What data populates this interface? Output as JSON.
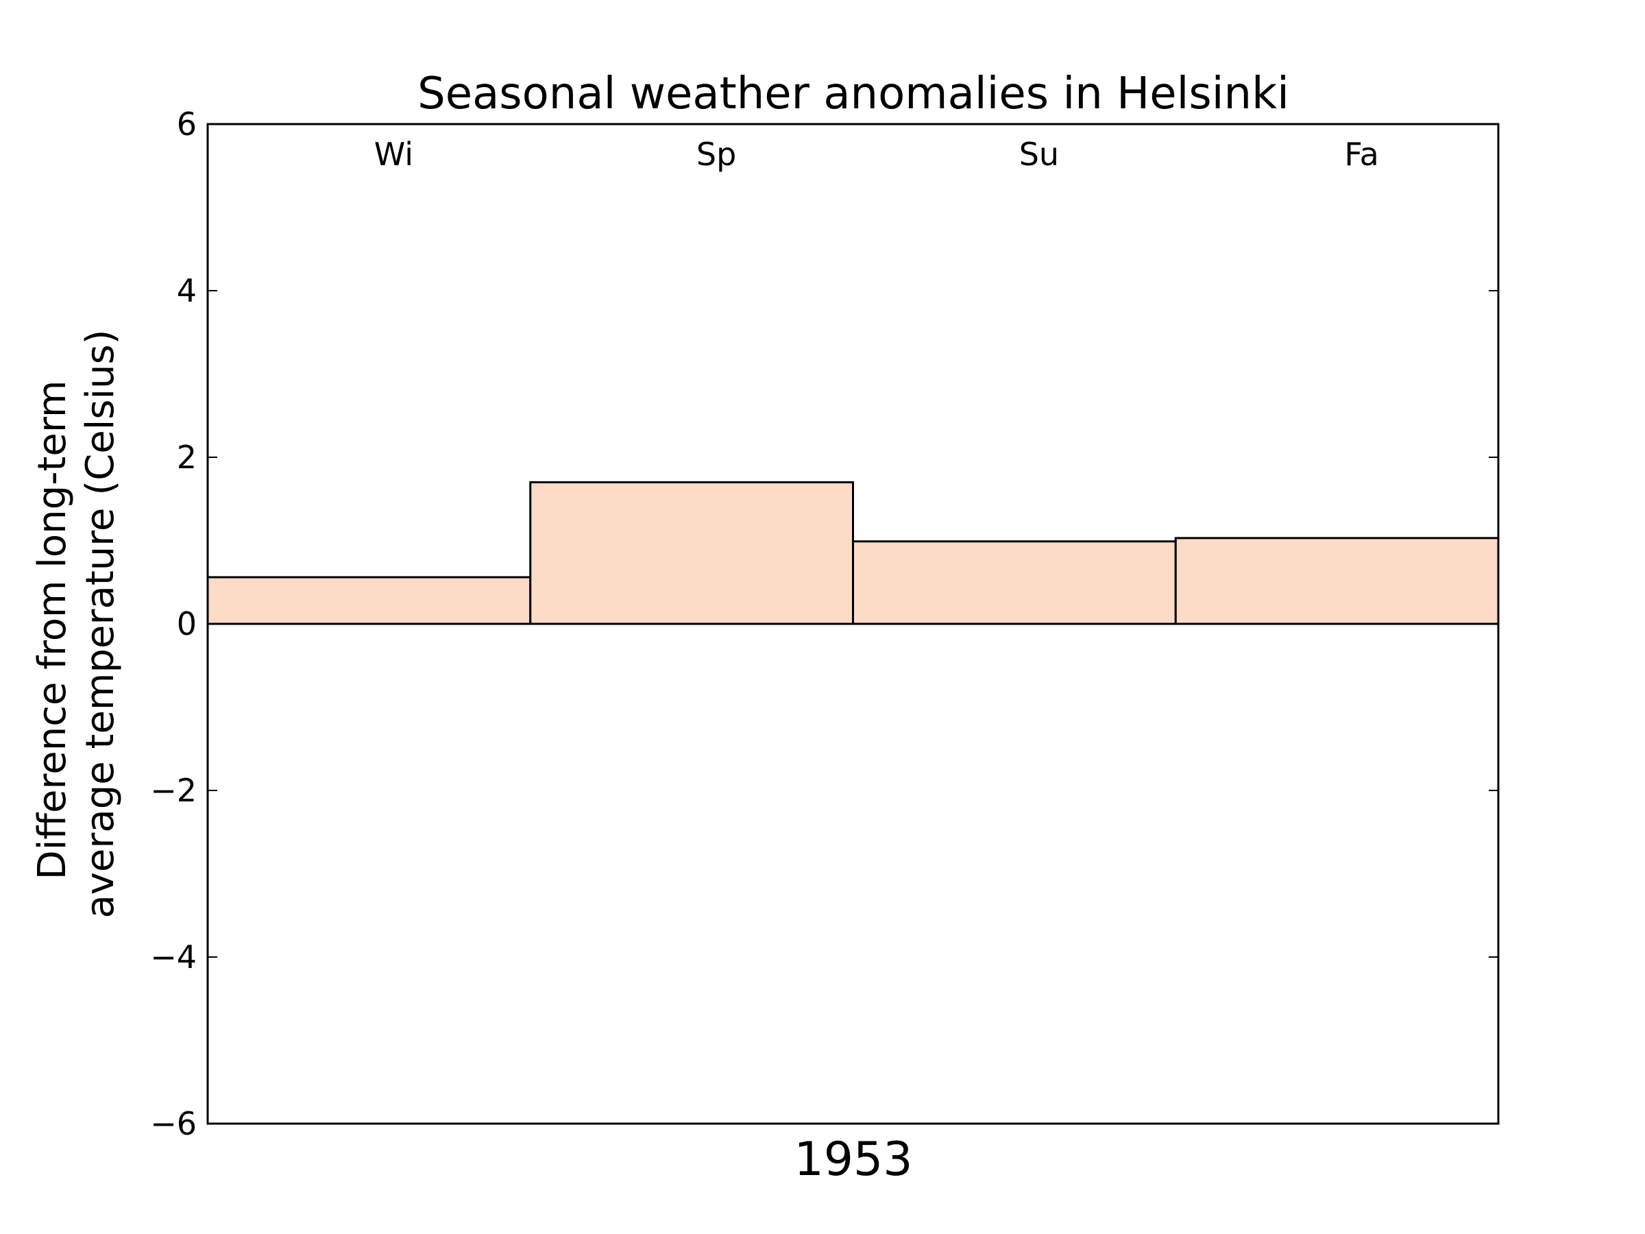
{
  "chart_data": {
    "type": "bar",
    "title": "Seasonal weather anomalies in Helsinki",
    "xlabel": "1953",
    "ylabel": [
      "Difference from long-term",
      "average temperature (Celsius)"
    ],
    "categories": [
      "Wi",
      "Sp",
      "Su",
      "Fa"
    ],
    "values": [
      0.56,
      1.7,
      0.99,
      1.03
    ],
    "ylim": [
      -6,
      6
    ],
    "yticks": [
      6,
      4,
      2,
      0,
      -2,
      -4,
      -6
    ],
    "ytick_labels": [
      "6",
      "4",
      "2",
      "0",
      "−2",
      "−4",
      "−6"
    ],
    "grid": false,
    "bar_color": "#fcdbc7",
    "edge_color": "#000000"
  }
}
